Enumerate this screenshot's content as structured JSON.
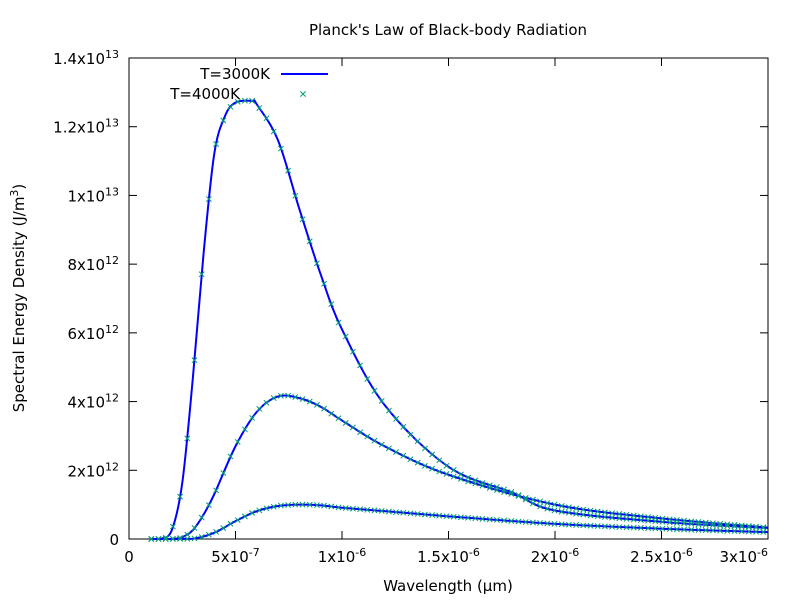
{
  "chart_data": {
    "type": "line",
    "title": "Planck's Law of Black-body Radiation",
    "xlabel": "Wavelength (µm)",
    "ylabel": {
      "text": "Spectral Energy Density (J/m",
      "sup": "3",
      "close": ")"
    },
    "xlim": [
      0,
      3e-06
    ],
    "ylim": [
      0,
      14000000000000.0
    ],
    "grid": false,
    "legend_position": "top-left",
    "x_ticks": [
      {
        "value": 0,
        "mantissa": "0",
        "exp": ""
      },
      {
        "value": 5e-07,
        "mantissa": "5x10",
        "exp": "-7"
      },
      {
        "value": 1e-06,
        "mantissa": "1x10",
        "exp": "-6"
      },
      {
        "value": 1.5e-06,
        "mantissa": "1.5x10",
        "exp": "-6"
      },
      {
        "value": 2e-06,
        "mantissa": "2x10",
        "exp": "-6"
      },
      {
        "value": 2.5e-06,
        "mantissa": "2.5x10",
        "exp": "-6"
      },
      {
        "value": 3e-06,
        "mantissa": "3x10",
        "exp": "-6"
      }
    ],
    "y_ticks": [
      {
        "value": 0,
        "mantissa": "0",
        "exp": ""
      },
      {
        "value": 2000000000000.0,
        "mantissa": "2x10",
        "exp": "12"
      },
      {
        "value": 4000000000000.0,
        "mantissa": "4x10",
        "exp": "12"
      },
      {
        "value": 6000000000000.0,
        "mantissa": "6x10",
        "exp": "12"
      },
      {
        "value": 8000000000000.0,
        "mantissa": "8x10",
        "exp": "12"
      },
      {
        "value": 10000000000000.0,
        "mantissa": "1x10",
        "exp": "13"
      },
      {
        "value": 12000000000000.0,
        "mantissa": "1.2x10",
        "exp": "13"
      },
      {
        "value": 14000000000000.0,
        "mantissa": "1.4x10",
        "exp": "13"
      }
    ],
    "legend": [
      {
        "label": "T=3000K",
        "style": "line",
        "color": "#0000ff"
      },
      {
        "label": "T=4000K",
        "style": "points",
        "marker": "x",
        "color": "#009e73"
      }
    ],
    "series": [
      {
        "style": "line",
        "color": "#0000ff",
        "curves": [
          {
            "x": [
              1e-07,
              2e-07,
              3e-07,
              4e-07,
              5e-07,
              6e-07,
              7e-07,
              8e-07,
              9e-07,
              1e-06,
              1.2e-06,
              1.5e-06,
              2e-06,
              2.5e-06,
              3e-06
            ],
            "y": [
              0,
              0,
              6700000000.0,
              180000000000.0,
              520000000000.0,
              810000000000.0,
              960000000000.0,
              1000000000000.0,
              980000000000.0,
              910000000000.0,
              810000000000.0,
              660000000000.0,
              440000000000.0,
              300000000000.0,
              200000000000.0
            ]
          },
          {
            "x": [
              1e-07,
              2e-07,
              2.5e-07,
              3e-07,
              3.5e-07,
              4e-07,
              5e-07,
              6e-07,
              7e-07,
              8e-07,
              9e-07,
              1e-06,
              1.2e-06,
              1.5e-06,
              2e-06,
              2.5e-06,
              3e-06
            ],
            "y": [
              0,
              3700000000.0,
              53000000000.0,
              260000000000.0,
              710000000000.0,
              1300000000000.0,
              2700000000000.0,
              3700000000000.0,
              4150000000000.0,
              4100000000000.0,
              3850000000000.0,
              3450000000000.0,
              2700000000000.0,
              1870000000000.0,
              1000000000000.0,
              600000000000.0,
              330000000000.0
            ]
          },
          {
            "x": [
              1e-07,
              1.5e-07,
              2e-07,
              2.5e-07,
              3e-07,
              3.5e-07,
              4e-07,
              4.5e-07,
              5e-07,
              5.8e-07,
              6e-07,
              7e-07,
              8e-07,
              9e-07,
              1e-06,
              1.2e-06,
              1.5e-06,
              1.8e-06,
              2e-06,
              2.5e-06,
              3e-06
            ],
            "y": [
              0,
              6600000000.0,
              240000000000.0,
              1630000000000.0,
              4700000000000.0,
              8300000000000.0,
              11200000000000.0,
              12300000000000.0,
              12700000000000.0,
              12750000000000.0,
              12650000000000.0,
              11600000000000.0,
              9600000000000.0,
              7700000000000.0,
              6100000000000.0,
              3900000000000.0,
              2100000000000.0,
              1350000000000.0,
              830000000000.0,
              500000000000.0,
              320000000000.0
            ]
          }
        ]
      },
      {
        "style": "points",
        "marker": "x",
        "color": "#009e73",
        "note_shape": "same three curves sampled at discrete wavelengths",
        "curves_from_line_series": true
      }
    ]
  }
}
